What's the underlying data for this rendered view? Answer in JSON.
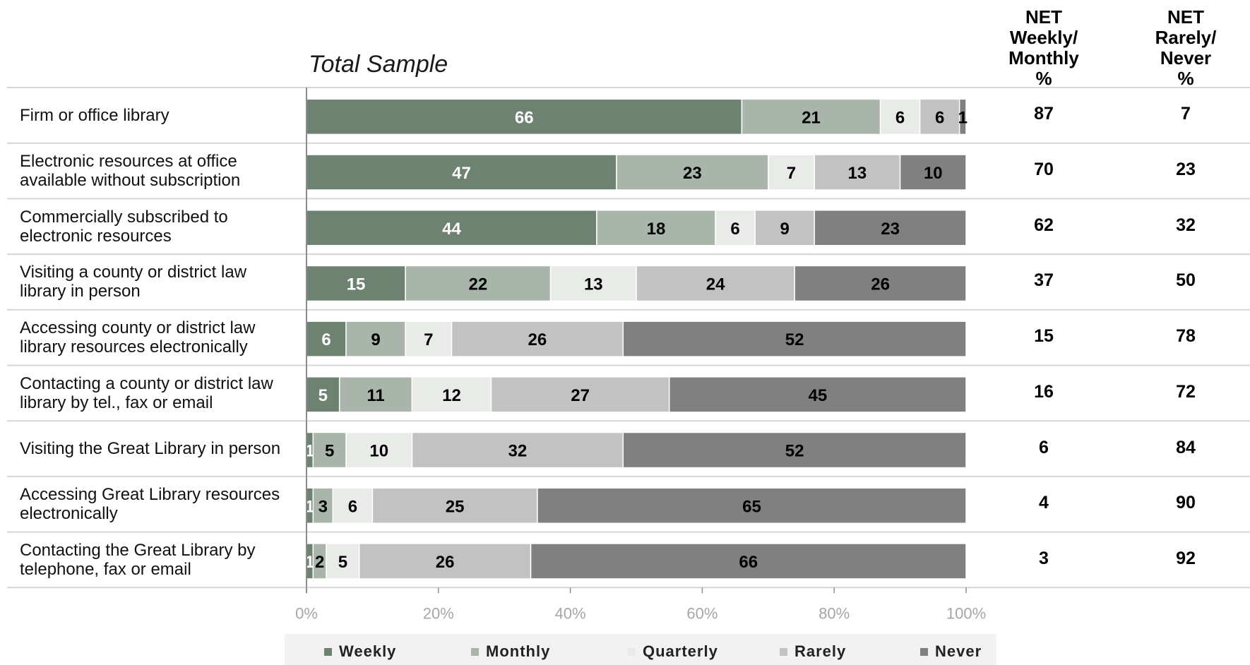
{
  "chart_data": {
    "type": "bar",
    "orientation": "horizontal",
    "stacked": true,
    "title": "Total Sample",
    "categories": [
      "Firm or office library",
      "Electronic resources at office available without subscription",
      "Commercially subscribed to electronic resources",
      "Visiting a county or district law library in person",
      "Accessing county or district law library resources electronically",
      "Contacting a county or district law library by tel., fax or email",
      "Visiting the Great Library in person",
      "Accessing Great Library resources electronically",
      "Contacting the Great Library by telephone, fax or email"
    ],
    "category_lines": [
      [
        "Firm or office library"
      ],
      [
        "Electronic resources at office",
        "available without subscription"
      ],
      [
        "Commercially subscribed to",
        "electronic resources"
      ],
      [
        "Visiting a county or district law",
        "library in person"
      ],
      [
        "Accessing county or district law",
        "library resources electronically"
      ],
      [
        "Contacting a county or district law",
        "library by tel., fax or email"
      ],
      [
        "Visiting the Great Library in person"
      ],
      [
        "Accessing Great Library resources",
        "electronically"
      ],
      [
        "Contacting the Great Library by",
        "telephone, fax or email"
      ]
    ],
    "series": [
      {
        "name": "Weekly",
        "color": "#6e8272",
        "label_color": "#ffffff",
        "values": [
          66,
          47,
          44,
          15,
          6,
          5,
          1,
          1,
          1
        ]
      },
      {
        "name": "Monthly",
        "color": "#a9b4ab",
        "label_color": "#000000",
        "values": [
          21,
          23,
          18,
          22,
          9,
          11,
          5,
          3,
          2
        ]
      },
      {
        "name": "Quarterly",
        "color": "#e8ebe8",
        "label_color": "#000000",
        "values": [
          6,
          7,
          6,
          13,
          7,
          12,
          10,
          6,
          5
        ]
      },
      {
        "name": "Rarely",
        "color": "#c2c2c2",
        "label_color": "#000000",
        "values": [
          6,
          13,
          9,
          24,
          26,
          27,
          32,
          25,
          26
        ]
      },
      {
        "name": "Never",
        "color": "#808080",
        "label_color": "#000000",
        "values": [
          1,
          10,
          23,
          26,
          52,
          45,
          52,
          65,
          66
        ]
      }
    ],
    "net_columns": [
      {
        "header_lines": [
          "NET",
          "Weekly/",
          "Monthly",
          "%"
        ],
        "values": [
          87,
          70,
          62,
          37,
          15,
          16,
          6,
          4,
          3
        ]
      },
      {
        "header_lines": [
          "NET",
          "Rarely/",
          "Never",
          "%"
        ],
        "values": [
          7,
          23,
          32,
          50,
          78,
          72,
          84,
          90,
          92
        ]
      }
    ],
    "xlim": [
      0,
      100
    ],
    "x_ticks": [
      "0%",
      "20%",
      "40%",
      "60%",
      "80%",
      "100%"
    ],
    "legend": {
      "position": "bottom",
      "entries": [
        "Weekly",
        "Monthly",
        "Quarterly",
        "Rarely",
        "Never"
      ]
    },
    "grid": false
  }
}
